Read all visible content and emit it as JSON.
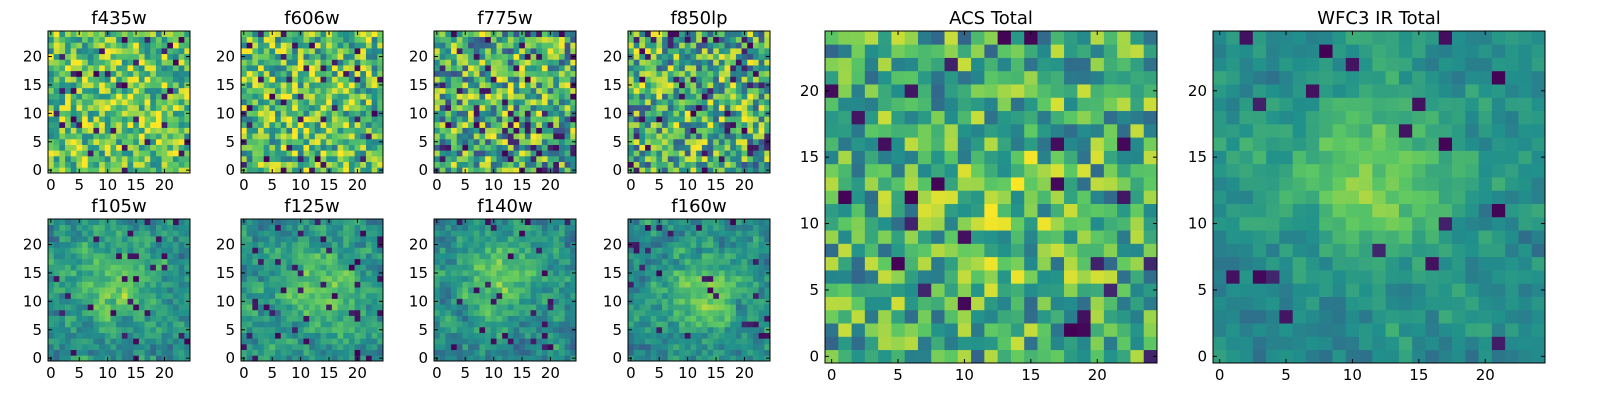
{
  "figure": {
    "description": "Image cutouts of a galaxy field in 8 HST filters plus stacked totals",
    "colormap": "viridis",
    "color_stops": [
      "#440154",
      "#3b528b",
      "#21918c",
      "#5ec962",
      "#fde725"
    ]
  },
  "chart_data": [
    {
      "type": "heatmap",
      "title": "f435w",
      "pixels": 25,
      "xticks": [
        0,
        5,
        10,
        15,
        20
      ],
      "yticks": [
        0,
        5,
        10,
        15,
        20
      ],
      "xlim": [
        0,
        25
      ],
      "ylim": [
        0,
        25
      ],
      "pattern": "noise",
      "seed": 11,
      "noise": 0.3,
      "signal": 0.05,
      "base": 0.73,
      "dark_fraction": 0.06
    },
    {
      "type": "heatmap",
      "title": "f606w",
      "pixels": 25,
      "xticks": [
        0,
        5,
        10,
        15,
        20
      ],
      "yticks": [
        0,
        5,
        10,
        15,
        20
      ],
      "xlim": [
        0,
        25
      ],
      "ylim": [
        0,
        25
      ],
      "pattern": "noise",
      "seed": 23,
      "noise": 0.32,
      "signal": 0.05,
      "base": 0.7,
      "dark_fraction": 0.06
    },
    {
      "type": "heatmap",
      "title": "f775w",
      "pixels": 25,
      "xticks": [
        0,
        5,
        10,
        15,
        20
      ],
      "yticks": [
        0,
        5,
        10,
        15,
        20
      ],
      "xlim": [
        0,
        25
      ],
      "ylim": [
        0,
        25
      ],
      "pattern": "noise",
      "seed": 37,
      "noise": 0.38,
      "signal": 0.05,
      "base": 0.62,
      "dark_fraction": 0.1
    },
    {
      "type": "heatmap",
      "title": "f850lp",
      "pixels": 25,
      "xticks": [
        0,
        5,
        10,
        15,
        20
      ],
      "yticks": [
        0,
        5,
        10,
        15,
        20
      ],
      "xlim": [
        0,
        25
      ],
      "ylim": [
        0,
        25
      ],
      "pattern": "noise",
      "seed": 41,
      "noise": 0.38,
      "signal": 0.05,
      "base": 0.62,
      "dark_fraction": 0.1
    },
    {
      "type": "heatmap",
      "title": "f105w",
      "pixels": 25,
      "xticks": [
        0,
        5,
        10,
        15,
        20
      ],
      "yticks": [
        0,
        5,
        10,
        15,
        20
      ],
      "xlim": [
        0,
        25
      ],
      "ylim": [
        0,
        25
      ],
      "pattern": "smooth",
      "seed": 53,
      "noise": 0.22,
      "signal": 0.28,
      "base": 0.5,
      "dark_fraction": 0.05
    },
    {
      "type": "heatmap",
      "title": "f125w",
      "pixels": 25,
      "xticks": [
        0,
        5,
        10,
        15,
        20
      ],
      "yticks": [
        0,
        5,
        10,
        15,
        20
      ],
      "xlim": [
        0,
        25
      ],
      "ylim": [
        0,
        25
      ],
      "pattern": "smooth",
      "seed": 67,
      "noise": 0.22,
      "signal": 0.28,
      "base": 0.5,
      "dark_fraction": 0.06
    },
    {
      "type": "heatmap",
      "title": "f140w",
      "pixels": 25,
      "xticks": [
        0,
        5,
        10,
        15,
        20
      ],
      "yticks": [
        0,
        5,
        10,
        15,
        20
      ],
      "xlim": [
        0,
        25
      ],
      "ylim": [
        0,
        25
      ],
      "pattern": "smooth",
      "seed": 79,
      "noise": 0.22,
      "signal": 0.3,
      "base": 0.48,
      "dark_fraction": 0.05
    },
    {
      "type": "heatmap",
      "title": "f160w",
      "pixels": 25,
      "xticks": [
        0,
        5,
        10,
        15,
        20
      ],
      "yticks": [
        0,
        5,
        10,
        15,
        20
      ],
      "xlim": [
        0,
        25
      ],
      "ylim": [
        0,
        25
      ],
      "pattern": "smooth",
      "seed": 83,
      "noise": 0.22,
      "signal": 0.3,
      "base": 0.48,
      "dark_fraction": 0.05
    },
    {
      "type": "heatmap",
      "title": "ACS Total",
      "pixels": 25,
      "xticks": [
        0,
        5,
        10,
        15,
        20
      ],
      "yticks": [
        0,
        5,
        10,
        15,
        20
      ],
      "xlim": [
        0,
        25
      ],
      "ylim": [
        0,
        25
      ],
      "pattern": "noise",
      "seed": 97,
      "noise": 0.3,
      "signal": 0.12,
      "base": 0.62,
      "dark_fraction": 0.05
    },
    {
      "type": "heatmap",
      "title": "WFC3 IR Total",
      "pixels": 25,
      "xticks": [
        0,
        5,
        10,
        15,
        20
      ],
      "yticks": [
        0,
        5,
        10,
        15,
        20
      ],
      "xlim": [
        0,
        25
      ],
      "ylim": [
        0,
        25
      ],
      "pattern": "smooth",
      "seed": 101,
      "noise": 0.16,
      "signal": 0.32,
      "base": 0.48,
      "dark_fraction": 0.04
    }
  ]
}
